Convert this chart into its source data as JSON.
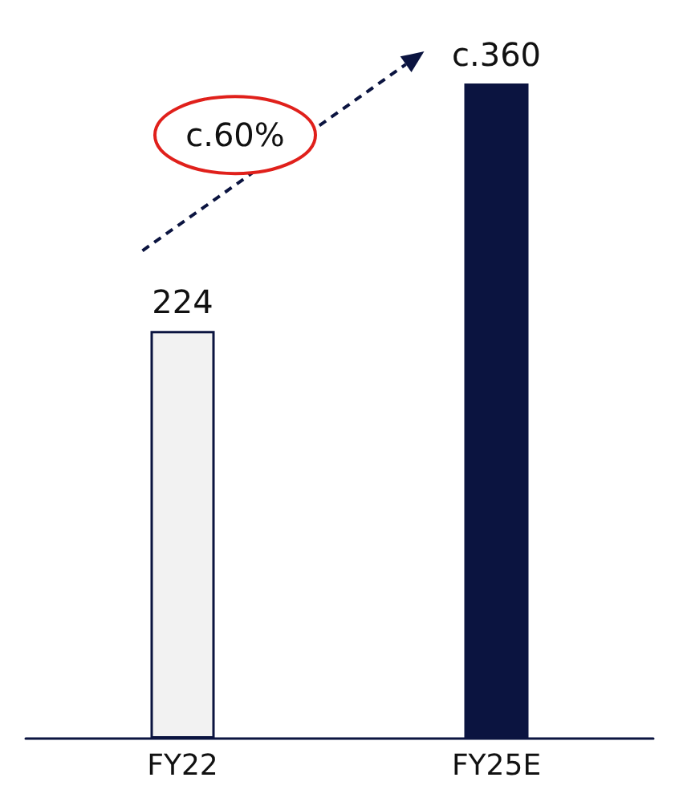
{
  "chart_data": {
    "type": "bar",
    "categories": [
      "FY22",
      "FY25E"
    ],
    "values": [
      224,
      360
    ],
    "colors": [
      "#f2f2f2",
      "#0b1440"
    ],
    "value_labels": [
      "224",
      "c.360"
    ],
    "annotations": [
      "c.60%"
    ]
  }
}
